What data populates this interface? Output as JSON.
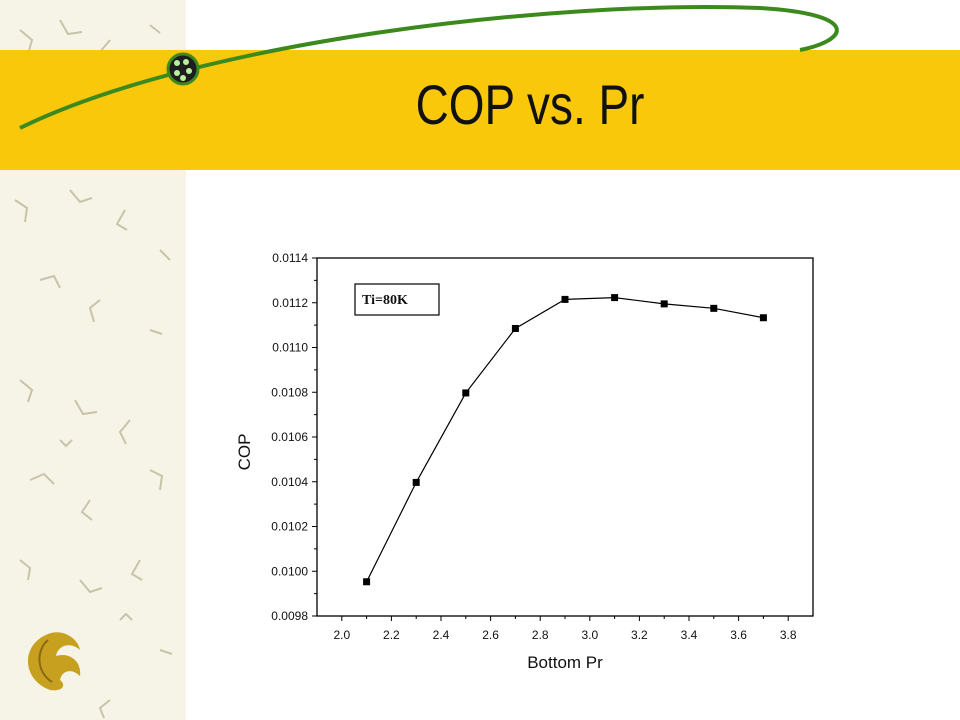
{
  "slide": {
    "title": "COP vs. Pr",
    "colors": {
      "band": "#f9c80a",
      "orbit": "#3c8a1e",
      "pattern": "#c8c4a8",
      "logo": "#c8a020"
    }
  },
  "chart_data": {
    "type": "line",
    "title": "",
    "xlabel": "Bottom Pr",
    "ylabel": "COP",
    "xlim": [
      1.9,
      3.9
    ],
    "ylim": [
      0.0098,
      0.0114
    ],
    "x_ticks": [
      "2.0",
      "2.2",
      "2.4",
      "2.6",
      "2.8",
      "3.0",
      "3.2",
      "3.4",
      "3.6",
      "3.8"
    ],
    "y_ticks": [
      "0.0098",
      "0.0100",
      "0.0102",
      "0.0104",
      "0.0106",
      "0.0108",
      "0.0110",
      "0.0112",
      "0.0114"
    ],
    "legend": {
      "text": "Ti=80K",
      "placement": "top-left"
    },
    "grid": false,
    "series": [
      {
        "marker": "square",
        "color": "#000000",
        "x": [
          2.1,
          2.3,
          2.5,
          2.7,
          2.9,
          3.1,
          3.3,
          3.5,
          3.7
        ],
        "y": [
          0.009953,
          0.010397,
          0.010797,
          0.011085,
          0.011215,
          0.011223,
          0.011195,
          0.011175,
          0.011133
        ]
      }
    ]
  }
}
